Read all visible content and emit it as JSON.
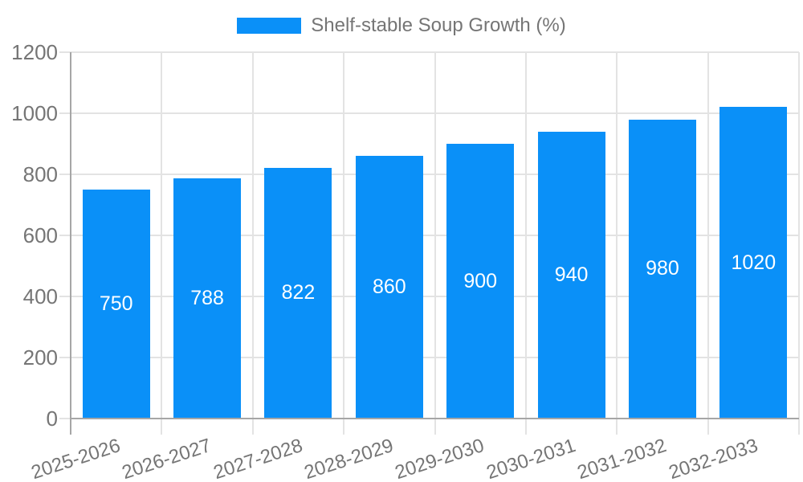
{
  "chart_data": {
    "type": "bar",
    "title": "",
    "legend_label": "Shelf-stable Soup Growth (%)",
    "legend_position": "top",
    "categories": [
      "2025-2026",
      "2026-2027",
      "2027-2028",
      "2028-2029",
      "2029-2030",
      "2030-2031",
      "2031-2032",
      "2032-2033"
    ],
    "values": [
      750,
      788,
      822,
      860,
      900,
      940,
      980,
      1020
    ],
    "bar_labels": [
      "750",
      "788",
      "822",
      "860",
      "900",
      "940",
      "980",
      "1020"
    ],
    "ytick_labels": [
      "0",
      "200",
      "400",
      "600",
      "800",
      "1000",
      "1200"
    ],
    "yticks": [
      0,
      200,
      400,
      600,
      800,
      1000,
      1200
    ],
    "ylim": [
      0,
      1200
    ],
    "xlabel": "",
    "ylabel": "",
    "grid": true,
    "colors": {
      "bar": "#0a90f8",
      "bar_label": "#ffffff",
      "axis_text": "#757575",
      "gridline": "#e3e3e3",
      "axis_line": "#a6a6a6",
      "background": "#ffffff"
    }
  }
}
